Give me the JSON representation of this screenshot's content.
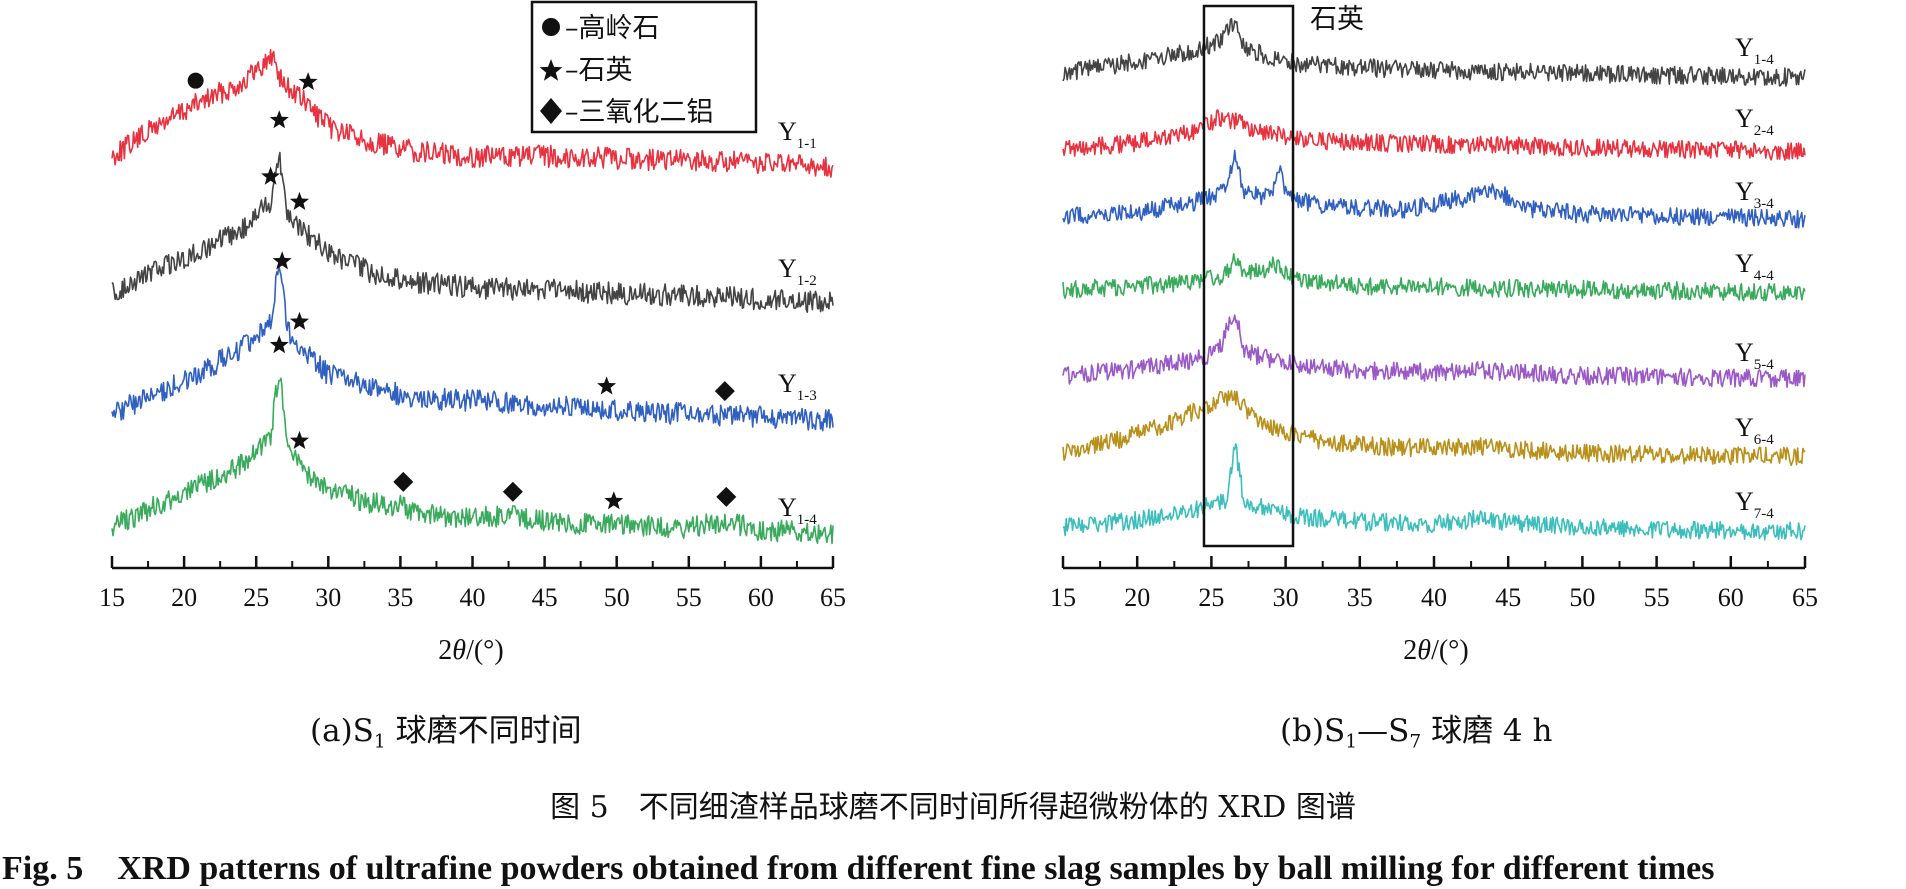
{
  "chart_data": [
    {
      "panel": "a",
      "type": "line",
      "xlabel": "2θ/(°)",
      "xlim": [
        15,
        65
      ],
      "xticks": [
        15,
        20,
        25,
        30,
        35,
        40,
        45,
        50,
        55,
        60,
        65
      ],
      "grid": false,
      "legend": {
        "placement": "top-center",
        "entries": [
          {
            "marker": "circle",
            "phase": "kaolinite",
            "label": "–高岭石"
          },
          {
            "marker": "star",
            "phase": "quartz",
            "label": "–石英"
          },
          {
            "marker": "diamond",
            "phase": "alumina",
            "label": "–三氧化二铝"
          }
        ]
      },
      "series": [
        {
          "name": "Y1-1",
          "label_main": "Y",
          "label_sub": "1-1",
          "color": "#e8323f",
          "points": [
            [
              15,
              0.1
            ],
            [
              18,
              0.35
            ],
            [
              21,
              0.55
            ],
            [
              24,
              0.72
            ],
            [
              26.2,
              0.95
            ],
            [
              26.8,
              0.72
            ],
            [
              28,
              0.6
            ],
            [
              30,
              0.35
            ],
            [
              33,
              0.22
            ],
            [
              36,
              0.14
            ],
            [
              40,
              0.1
            ],
            [
              45,
              0.1
            ],
            [
              50,
              0.08
            ],
            [
              55,
              0.06
            ],
            [
              60,
              0.04
            ],
            [
              65,
              0.0
            ]
          ],
          "peaks": [
            {
              "x": 20.8,
              "marker": "circle"
            },
            {
              "x": 28.6,
              "marker": "star"
            }
          ]
        },
        {
          "name": "Y1-2",
          "label_main": "Y",
          "label_sub": "1-2",
          "color": "#444444",
          "points": [
            [
              15,
              0.1
            ],
            [
              18,
              0.3
            ],
            [
              21,
              0.45
            ],
            [
              24,
              0.65
            ],
            [
              26,
              0.9
            ],
            [
              26.6,
              1.3
            ],
            [
              27.2,
              0.78
            ],
            [
              28.5,
              0.62
            ],
            [
              30,
              0.45
            ],
            [
              33,
              0.28
            ],
            [
              36,
              0.2
            ],
            [
              40,
              0.15
            ],
            [
              45,
              0.13
            ],
            [
              50,
              0.1
            ],
            [
              55,
              0.08
            ],
            [
              60,
              0.05
            ],
            [
              65,
              0.02
            ]
          ],
          "peaks": [
            {
              "x": 26.0,
              "marker": "star"
            },
            {
              "x": 26.6,
              "marker": "star"
            },
            {
              "x": 28.0,
              "marker": "star"
            }
          ]
        },
        {
          "name": "Y1-3",
          "label_main": "Y",
          "label_sub": "1-3",
          "color": "#3060c0",
          "points": [
            [
              15,
              0.1
            ],
            [
              18,
              0.25
            ],
            [
              21,
              0.4
            ],
            [
              24,
              0.6
            ],
            [
              26,
              0.8
            ],
            [
              26.6,
              1.25
            ],
            [
              27.2,
              0.72
            ],
            [
              28.5,
              0.55
            ],
            [
              30,
              0.4
            ],
            [
              33,
              0.3
            ],
            [
              36,
              0.22
            ],
            [
              40,
              0.2
            ],
            [
              45,
              0.16
            ],
            [
              50,
              0.12
            ],
            [
              55,
              0.1
            ],
            [
              60,
              0.08
            ],
            [
              65,
              0.05
            ]
          ],
          "peaks": [
            {
              "x": 26.8,
              "marker": "star"
            },
            {
              "x": 28.0,
              "marker": "star"
            },
            {
              "x": 49.3,
              "marker": "star"
            },
            {
              "x": 57.5,
              "marker": "diamond"
            }
          ]
        },
        {
          "name": "Y1-4",
          "label_main": "Y",
          "label_sub": "1-4",
          "color": "#3aaa5c",
          "points": [
            [
              15,
              0.1
            ],
            [
              18,
              0.28
            ],
            [
              21,
              0.45
            ],
            [
              24,
              0.62
            ],
            [
              26,
              0.85
            ],
            [
              26.6,
              1.4
            ],
            [
              27.2,
              0.72
            ],
            [
              28.5,
              0.55
            ],
            [
              30,
              0.42
            ],
            [
              33,
              0.3
            ],
            [
              35.2,
              0.28
            ],
            [
              36,
              0.22
            ],
            [
              40,
              0.18
            ],
            [
              43,
              0.2
            ],
            [
              45,
              0.15
            ],
            [
              50,
              0.12
            ],
            [
              55,
              0.1
            ],
            [
              57.5,
              0.16
            ],
            [
              60,
              0.08
            ],
            [
              65,
              0.05
            ]
          ],
          "peaks": [
            {
              "x": 26.6,
              "marker": "star"
            },
            {
              "x": 28.0,
              "marker": "star"
            },
            {
              "x": 35.2,
              "marker": "diamond"
            },
            {
              "x": 42.8,
              "marker": "diamond"
            },
            {
              "x": 49.8,
              "marker": "star"
            },
            {
              "x": 57.6,
              "marker": "diamond"
            }
          ]
        }
      ]
    },
    {
      "panel": "b",
      "type": "line",
      "xlabel": "2θ/(°)",
      "xlim": [
        15,
        65
      ],
      "xticks": [
        15,
        20,
        25,
        30,
        35,
        40,
        45,
        50,
        55,
        60,
        65
      ],
      "grid": false,
      "highlight_box": {
        "x_range": [
          24.5,
          30.5
        ],
        "label": "石英"
      },
      "series": [
        {
          "name": "Y1-4",
          "label_main": "Y",
          "label_sub": "1-4",
          "color": "#444444",
          "points": [
            [
              15,
              0.15
            ],
            [
              20,
              0.35
            ],
            [
              24,
              0.55
            ],
            [
              25.5,
              0.7
            ],
            [
              26.6,
              1.05
            ],
            [
              27.2,
              0.6
            ],
            [
              29,
              0.42
            ],
            [
              31,
              0.3
            ],
            [
              35,
              0.25
            ],
            [
              40,
              0.2
            ],
            [
              45,
              0.18
            ],
            [
              50,
              0.15
            ],
            [
              55,
              0.12
            ],
            [
              60,
              0.1
            ],
            [
              65,
              0.08
            ]
          ]
        },
        {
          "name": "Y2-4",
          "label_main": "Y",
          "label_sub": "2-4",
          "color": "#e8323f",
          "points": [
            [
              15,
              0.1
            ],
            [
              20,
              0.2
            ],
            [
              24,
              0.4
            ],
            [
              25.5,
              0.6
            ],
            [
              26.5,
              0.55
            ],
            [
              28,
              0.4
            ],
            [
              30,
              0.3
            ],
            [
              33,
              0.22
            ],
            [
              38,
              0.18
            ],
            [
              45,
              0.15
            ],
            [
              50,
              0.12
            ],
            [
              55,
              0.1
            ],
            [
              60,
              0.08
            ],
            [
              65,
              0.05
            ]
          ]
        },
        {
          "name": "Y3-4",
          "label_main": "Y",
          "label_sub": "3-4",
          "color": "#3060c0",
          "points": [
            [
              15,
              0.1
            ],
            [
              20,
              0.15
            ],
            [
              24,
              0.3
            ],
            [
              26,
              0.45
            ],
            [
              26.6,
              1.0
            ],
            [
              27.2,
              0.4
            ],
            [
              29,
              0.35
            ],
            [
              29.6,
              0.7
            ],
            [
              30.2,
              0.35
            ],
            [
              33,
              0.22
            ],
            [
              38,
              0.18
            ],
            [
              44.5,
              0.45
            ],
            [
              45.5,
              0.22
            ],
            [
              50,
              0.12
            ],
            [
              55,
              0.1
            ],
            [
              60,
              0.08
            ],
            [
              65,
              0.05
            ]
          ]
        },
        {
          "name": "Y4-4",
          "label_main": "Y",
          "label_sub": "4-4",
          "color": "#3aaa5c",
          "points": [
            [
              15,
              0.1
            ],
            [
              20,
              0.15
            ],
            [
              24,
              0.25
            ],
            [
              26,
              0.35
            ],
            [
              26.6,
              0.7
            ],
            [
              27.2,
              0.35
            ],
            [
              29.5,
              0.55
            ],
            [
              30.5,
              0.3
            ],
            [
              35,
              0.15
            ],
            [
              40,
              0.15
            ],
            [
              45,
              0.12
            ],
            [
              50,
              0.1
            ],
            [
              55,
              0.08
            ],
            [
              60,
              0.06
            ],
            [
              65,
              0.05
            ]
          ]
        },
        {
          "name": "Y5-4",
          "label_main": "Y",
          "label_sub": "5-4",
          "color": "#9b59c8",
          "points": [
            [
              15,
              0.1
            ],
            [
              20,
              0.2
            ],
            [
              24,
              0.35
            ],
            [
              25.5,
              0.5
            ],
            [
              26.6,
              1.1
            ],
            [
              27.2,
              0.5
            ],
            [
              28,
              0.42
            ],
            [
              30,
              0.3
            ],
            [
              35,
              0.18
            ],
            [
              40,
              0.15
            ],
            [
              43,
              0.2
            ],
            [
              45,
              0.15
            ],
            [
              50,
              0.1
            ],
            [
              55,
              0.08
            ],
            [
              60,
              0.06
            ],
            [
              65,
              0.05
            ]
          ]
        },
        {
          "name": "Y6-4",
          "label_main": "Y",
          "label_sub": "6-4",
          "color": "#b8901a",
          "points": [
            [
              15,
              0.1
            ],
            [
              18,
              0.25
            ],
            [
              21,
              0.45
            ],
            [
              24,
              0.72
            ],
            [
              25.5,
              0.9
            ],
            [
              26.5,
              0.95
            ],
            [
              28,
              0.6
            ],
            [
              30,
              0.4
            ],
            [
              33,
              0.25
            ],
            [
              38,
              0.18
            ],
            [
              43,
              0.2
            ],
            [
              46,
              0.15
            ],
            [
              50,
              0.1
            ],
            [
              55,
              0.08
            ],
            [
              60,
              0.06
            ],
            [
              65,
              0.05
            ]
          ]
        },
        {
          "name": "Y7-4",
          "label_main": "Y",
          "label_sub": "7-4",
          "color": "#3cbfbc",
          "points": [
            [
              15,
              0.1
            ],
            [
              20,
              0.2
            ],
            [
              24,
              0.35
            ],
            [
              26,
              0.48
            ],
            [
              26.6,
              1.2
            ],
            [
              27.2,
              0.45
            ],
            [
              29,
              0.35
            ],
            [
              30.5,
              0.25
            ],
            [
              35,
              0.18
            ],
            [
              40,
              0.15
            ],
            [
              43,
              0.22
            ],
            [
              46,
              0.15
            ],
            [
              50,
              0.1
            ],
            [
              55,
              0.08
            ],
            [
              60,
              0.06
            ],
            [
              65,
              0.05
            ]
          ]
        }
      ]
    }
  ],
  "captions": {
    "sub_a": {
      "prefix": "(a)S",
      "sub": "1",
      "suffix": " 球磨不同时间"
    },
    "sub_b": {
      "prefix": "(b)S",
      "sub1": "1",
      "mid": "—S",
      "sub2": "7",
      "suffix": " 球磨 4 h"
    },
    "figure_cn": "图 5　不同细渣样品球磨不同时间所得超微粉体的 XRD 图谱",
    "figure_en": "Fig. 5　XRD patterns of ultrafine powders obtained from different fine slag samples by ball milling for different times"
  }
}
